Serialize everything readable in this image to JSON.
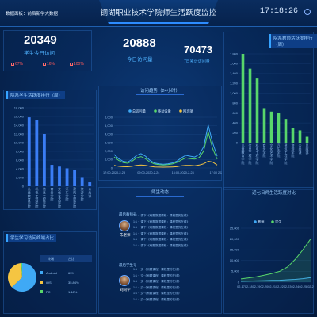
{
  "header": {
    "breadcrumb": "数据面板：前后新学大数据",
    "title": "铜湖职业技术学院师生活跃度监控",
    "clock": "17:18:26"
  },
  "stats": {
    "total": {
      "value": "20349",
      "label": "学生今日访问",
      "deltas": [
        "67%",
        "16%",
        "100%"
      ]
    },
    "today": {
      "value": "20888",
      "label": "今日访问量"
    },
    "week": {
      "value": "70473",
      "label": "7日累计访问量"
    }
  },
  "panels": {
    "left_bar_title": "院系学生活跃度排行（周）",
    "right_bar_title": "院系教师活跃度排行（周）",
    "trend_title": "访问趋势（24小时）",
    "feed_title": "师生动态",
    "pie_title": "学生学习访问终端占比",
    "bottom_right_title": "近七日师生活跃度对比"
  },
  "trend": {
    "legend": [
      "总访问量",
      "移动设备",
      "网页端"
    ],
    "ticks_y": [
      "0",
      "1,000",
      "2,000",
      "3,000",
      "4,000",
      "5,000",
      "6,000"
    ],
    "ticks_x": [
      "17:00-2020-2-23",
      "09:00-2020-2-24",
      "16:00-2020-2-24",
      "17:00 2020"
    ]
  },
  "feed": {
    "teacher_tag": "最后教师号",
    "student_tag": "最后学生号",
    "teacher_name": "朱老师",
    "student_name": "刘同学",
    "teacher_lines": [
      "1:1 ·· 课下··《刷题数据课程：课程里的在线》",
      "1:1 ·· 课下··《刷题数据课程：课程里的在线》",
      "1:1 ·· 课下··《刷题数据课程：课程里的在线》",
      "1:1 ·· 课下··《刷题数据课程：课程里的在线》",
      "1:1 ·· 课下··《刷题数据课程：课程里的在线》",
      "1:1 ·· 课下··《刷题数据课程：课程里的在线》"
    ],
    "student_lines": [
      "1:1 ·· 交··《刷题课程：课程里的在线》",
      "1:1 ·· 交··《刷题课程：课程里的在线》",
      "1:1 ·· 交··《刷题课程：课程里的在线》",
      "1:1 ·· 交··《刷题课程：课程里的在线》",
      "1:1 ·· 交··《刷题课程：课程里的在线》",
      "1:1 ·· 交··《刷题课程：课程里的在线》"
    ]
  },
  "terminal_table": {
    "header": [
      "终端",
      "占比"
    ],
    "rows": [
      {
        "name": "Android",
        "pct": "63%",
        "color": "#3fa9f5"
      },
      {
        "name": "iOS",
        "pct": "35.84%",
        "color": "#f5c542"
      },
      {
        "name": "PC",
        "pct": "1.16%",
        "color": "#58d66b"
      }
    ]
  },
  "chart_data": [
    {
      "type": "bar",
      "title": "院系学生活跃度排行（周）",
      "categories": [
        "儿童教育学院",
        "机电工程学院",
        "信息工程学院",
        "商务学院",
        "文化艺术学院",
        "汽车学院",
        "建筑工程学院",
        "旅游学院",
        "公共课"
      ],
      "values": [
        15800,
        15200,
        12000,
        4900,
        4500,
        4100,
        3700,
        2100,
        900
      ],
      "ylim": [
        0,
        18000
      ],
      "ticks": [
        "0",
        "2,000",
        "4,000",
        "6,000",
        "8,000",
        "10,000",
        "12,000",
        "14,000",
        "16,000",
        "18,000"
      ],
      "color": "#3a7df5"
    },
    {
      "type": "bar",
      "title": "院系教师活跃度排行（周）",
      "categories": [
        "儿童教育学院",
        "信息工程学院",
        "机电工程学院",
        "商务学院",
        "文化艺术学院",
        "汽车学院",
        "建筑工程学院",
        "旅游学院",
        "公共课",
        "思政部"
      ],
      "values": [
        1800,
        1500,
        1300,
        700,
        630,
        600,
        480,
        300,
        250,
        120
      ],
      "ylim": [
        0,
        1800
      ],
      "ticks": [
        "0",
        "200",
        "400",
        "600",
        "800",
        "1,000",
        "1,200",
        "1,400",
        "1,600",
        "1,800"
      ],
      "color": "#58d66b"
    },
    {
      "type": "line",
      "title": "访问趋势（24小时）",
      "ylim": [
        0,
        6000
      ],
      "series": [
        {
          "name": "总访问量",
          "color": "#3fa9f5",
          "values": [
            1600,
            1100,
            800,
            700,
            1000,
            1500,
            1700,
            1400,
            900,
            600,
            500,
            450,
            500,
            600,
            800,
            1200,
            1500,
            1400,
            1300,
            1600,
            2500,
            5100,
            3000,
            1400
          ]
        },
        {
          "name": "移动设备",
          "color": "#58d66b",
          "values": [
            1300,
            900,
            650,
            560,
            800,
            1200,
            1350,
            1100,
            700,
            480,
            400,
            360,
            400,
            480,
            650,
            950,
            1200,
            1100,
            1050,
            1250,
            2000,
            4300,
            2300,
            1050
          ]
        },
        {
          "name": "网页端",
          "color": "#f5c542",
          "values": [
            300,
            200,
            150,
            140,
            200,
            300,
            350,
            300,
            200,
            120,
            100,
            90,
            100,
            120,
            150,
            250,
            300,
            300,
            250,
            350,
            500,
            800,
            700,
            350
          ]
        }
      ]
    },
    {
      "type": "pie",
      "title": "学生学习访问终端占比",
      "slices": [
        {
          "name": "Android",
          "value": 63,
          "color": "#3fa9f5"
        },
        {
          "name": "iOS",
          "value": 35.84,
          "color": "#f5c542"
        },
        {
          "name": "PC",
          "value": 1.16,
          "color": "#58d66b"
        }
      ]
    },
    {
      "type": "line",
      "title": "近七日师生活跃度对比",
      "legend": [
        "教师",
        "学生"
      ],
      "categories": [
        "02-17",
        "02-18",
        "02-19",
        "02-20",
        "02-21",
        "02-22",
        "02-23",
        "02-24",
        "02-25",
        "02-2"
      ],
      "ylim": [
        0,
        25000
      ],
      "ticks": [
        "0",
        "5,000",
        "10,000",
        "15,000",
        "20,000",
        "25,000"
      ],
      "series": [
        {
          "name": "教师",
          "color": "#3fa9f5",
          "values": [
            400,
            500,
            600,
            700,
            800,
            900,
            1100,
            1300,
            1600,
            2100
          ]
        },
        {
          "name": "学生",
          "color": "#58d66b",
          "values": [
            1500,
            2000,
            2500,
            3200,
            4000,
            5000,
            7000,
            10500,
            15000,
            20000
          ]
        }
      ]
    }
  ]
}
